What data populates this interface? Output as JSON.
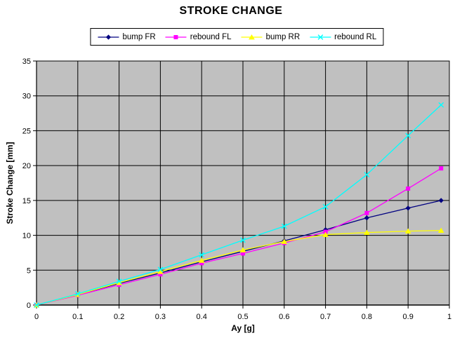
{
  "chart_data": {
    "type": "line",
    "title": "STROKE CHANGE",
    "xlabel": "Ay [g]",
    "ylabel": "Stroke Change [mm]",
    "xlim": [
      0,
      1
    ],
    "ylim": [
      0,
      35
    ],
    "grid": true,
    "legend_position": "top-center",
    "plot_bg_color": "#C0C0C0",
    "grid_color": "#000000",
    "outer_bg_color": "#FFFFFF",
    "x_tick_labels": [
      "0",
      "0.1",
      "0.2",
      "0.3",
      "0.4",
      "0.5",
      "0.6",
      "0.7",
      "0.8",
      "0.9",
      "1"
    ],
    "x_tick_values": [
      0,
      0.1,
      0.2,
      0.3,
      0.4,
      0.5,
      0.6,
      0.7,
      0.8,
      0.9,
      1
    ],
    "y_tick_labels": [
      "0",
      "5",
      "10",
      "15",
      "20",
      "25",
      "30",
      "35"
    ],
    "y_tick_values": [
      0,
      5,
      10,
      15,
      20,
      25,
      30,
      35
    ],
    "x": [
      0,
      0.1,
      0.2,
      0.3,
      0.4,
      0.5,
      0.6,
      0.7,
      0.8,
      0.9,
      0.98
    ],
    "series": [
      {
        "name": "bump FR",
        "color": "#000080",
        "marker": "diamond",
        "values": [
          0,
          1.5,
          3.1,
          4.6,
          6.2,
          7.7,
          9.2,
          10.8,
          12.5,
          13.9,
          15.0
        ]
      },
      {
        "name": "rebound FL",
        "color": "#FF00FF",
        "marker": "square",
        "values": [
          0,
          1.4,
          2.9,
          4.4,
          6.0,
          7.4,
          8.9,
          10.5,
          13.2,
          16.7,
          19.6
        ]
      },
      {
        "name": "bump RR",
        "color": "#FFFF00",
        "marker": "triangle",
        "values": [
          0,
          1.5,
          3.2,
          4.8,
          6.4,
          7.9,
          9.1,
          10.1,
          10.4,
          10.6,
          10.7
        ]
      },
      {
        "name": "rebound RL",
        "color": "#00FFFF",
        "marker": "x",
        "values": [
          0,
          1.6,
          3.4,
          5.1,
          7.2,
          9.3,
          11.3,
          14.1,
          18.7,
          24.3,
          28.7
        ]
      }
    ]
  }
}
